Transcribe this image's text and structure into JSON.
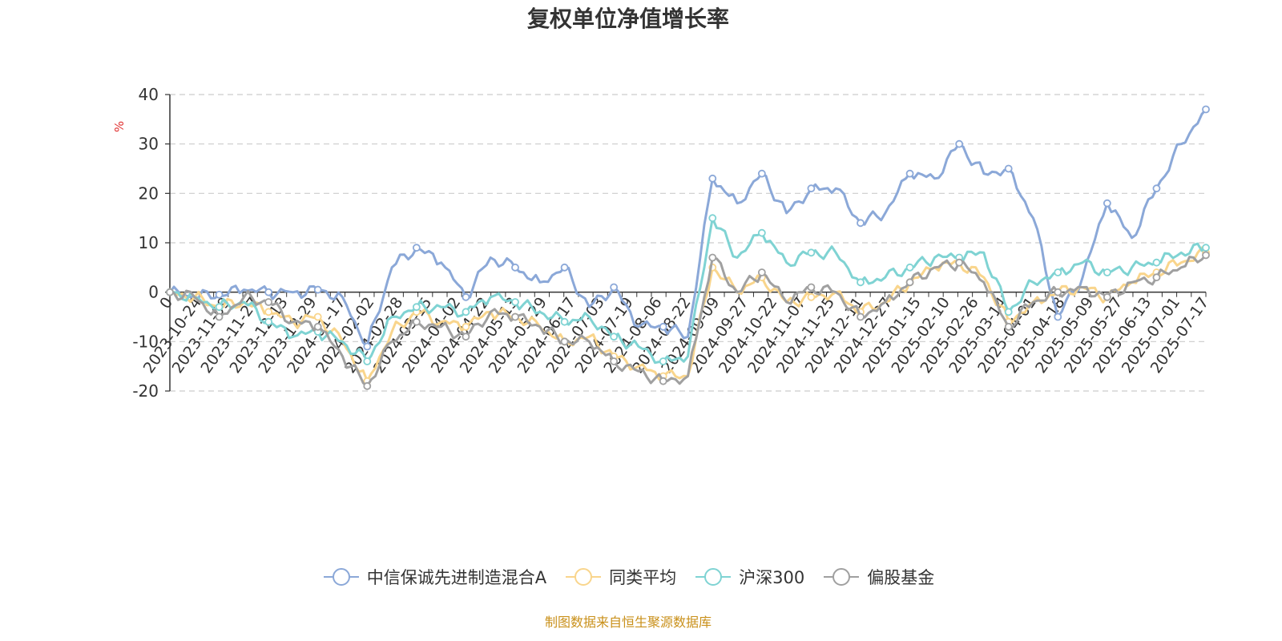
{
  "chart_data": {
    "type": "line",
    "title": "复权单位净值增长率",
    "ylabel": "%",
    "ylim": [
      -20,
      40
    ],
    "yticks": [
      -20,
      -10,
      0,
      10,
      20,
      30,
      40
    ],
    "grid": true,
    "legend_position": "bottom",
    "x_tick_labels": [
      "0",
      "2023-10-24",
      "2023-11-09",
      "2023-11-27",
      "2023-12-13",
      "2023-12-29",
      "2024-01-17",
      "2024-02-02",
      "2024-02-28",
      "2024-03-15",
      "2024-04-02",
      "2024-04-22",
      "2024-05-13",
      "2024-05-29",
      "2024-06-17",
      "2024-07-03",
      "2024-07-19",
      "2024-08-06",
      "2024-08-22",
      "2024-09-09",
      "2024-09-27",
      "2024-10-22",
      "2024-11-07",
      "2024-11-25",
      "2024-12-11",
      "2024-12-27",
      "2025-01-15",
      "2025-02-10",
      "2025-02-26",
      "2025-03-14",
      "2025-04-01",
      "2025-04-18",
      "2025-05-09",
      "2025-05-27",
      "2025-06-13",
      "2025-07-01",
      "2025-07-17"
    ],
    "series": [
      {
        "name": "中信保诚先进制造混合A",
        "color": "#8ba8d8",
        "values": [
          0,
          -1,
          -0.5,
          0.5,
          0,
          0,
          0.5,
          -1,
          -11,
          5,
          9,
          6,
          -1,
          7,
          5,
          2,
          5,
          -3,
          1,
          -7,
          -7,
          -9,
          23,
          18,
          24,
          16,
          21,
          21,
          14,
          16,
          24,
          23,
          30,
          24,
          25,
          15,
          -5,
          3,
          18,
          11,
          21,
          30,
          37
        ]
      },
      {
        "name": "同类平均",
        "color": "#f9d58c",
        "values": [
          0,
          -1,
          -3,
          -2,
          -4,
          -6,
          -5,
          -10,
          -18,
          -8,
          -4,
          -6,
          -7,
          -4,
          -5,
          -7,
          -10,
          -9,
          -13,
          -15,
          -17,
          -17,
          5,
          0,
          3,
          -2,
          -1,
          0,
          -4,
          -2,
          2,
          5,
          6,
          3,
          -6,
          -2,
          0,
          1,
          -1,
          2,
          4,
          6,
          8
        ]
      },
      {
        "name": "沪深300",
        "color": "#7fd3d3",
        "values": [
          0,
          -1,
          -3,
          -2,
          -6,
          -9,
          -8,
          -10,
          -14,
          -5,
          -3,
          -3,
          -4,
          -1,
          -2,
          -4,
          -6,
          -5,
          -9,
          -11,
          -14,
          -13,
          15,
          7,
          12,
          6,
          8,
          8,
          2,
          3,
          5,
          7,
          7,
          8,
          -4,
          2,
          4,
          6,
          4,
          5,
          6,
          8,
          9
        ]
      },
      {
        "name": "偏股基金",
        "color": "#a0a0a0",
        "values": [
          0,
          -1,
          -5,
          -1,
          -2,
          -6,
          -7,
          -13,
          -19,
          -10,
          -6,
          -7,
          -9,
          -4,
          -5,
          -7,
          -10,
          -10,
          -14,
          -16,
          -18,
          -17,
          7,
          0,
          4,
          -2,
          1,
          0,
          -5,
          -2,
          2,
          5,
          6,
          2,
          -7,
          -2,
          0,
          1,
          -1,
          2,
          3,
          5,
          7.5
        ]
      }
    ]
  },
  "footer": {
    "source": "制图数据来自恒生聚源数据库"
  }
}
